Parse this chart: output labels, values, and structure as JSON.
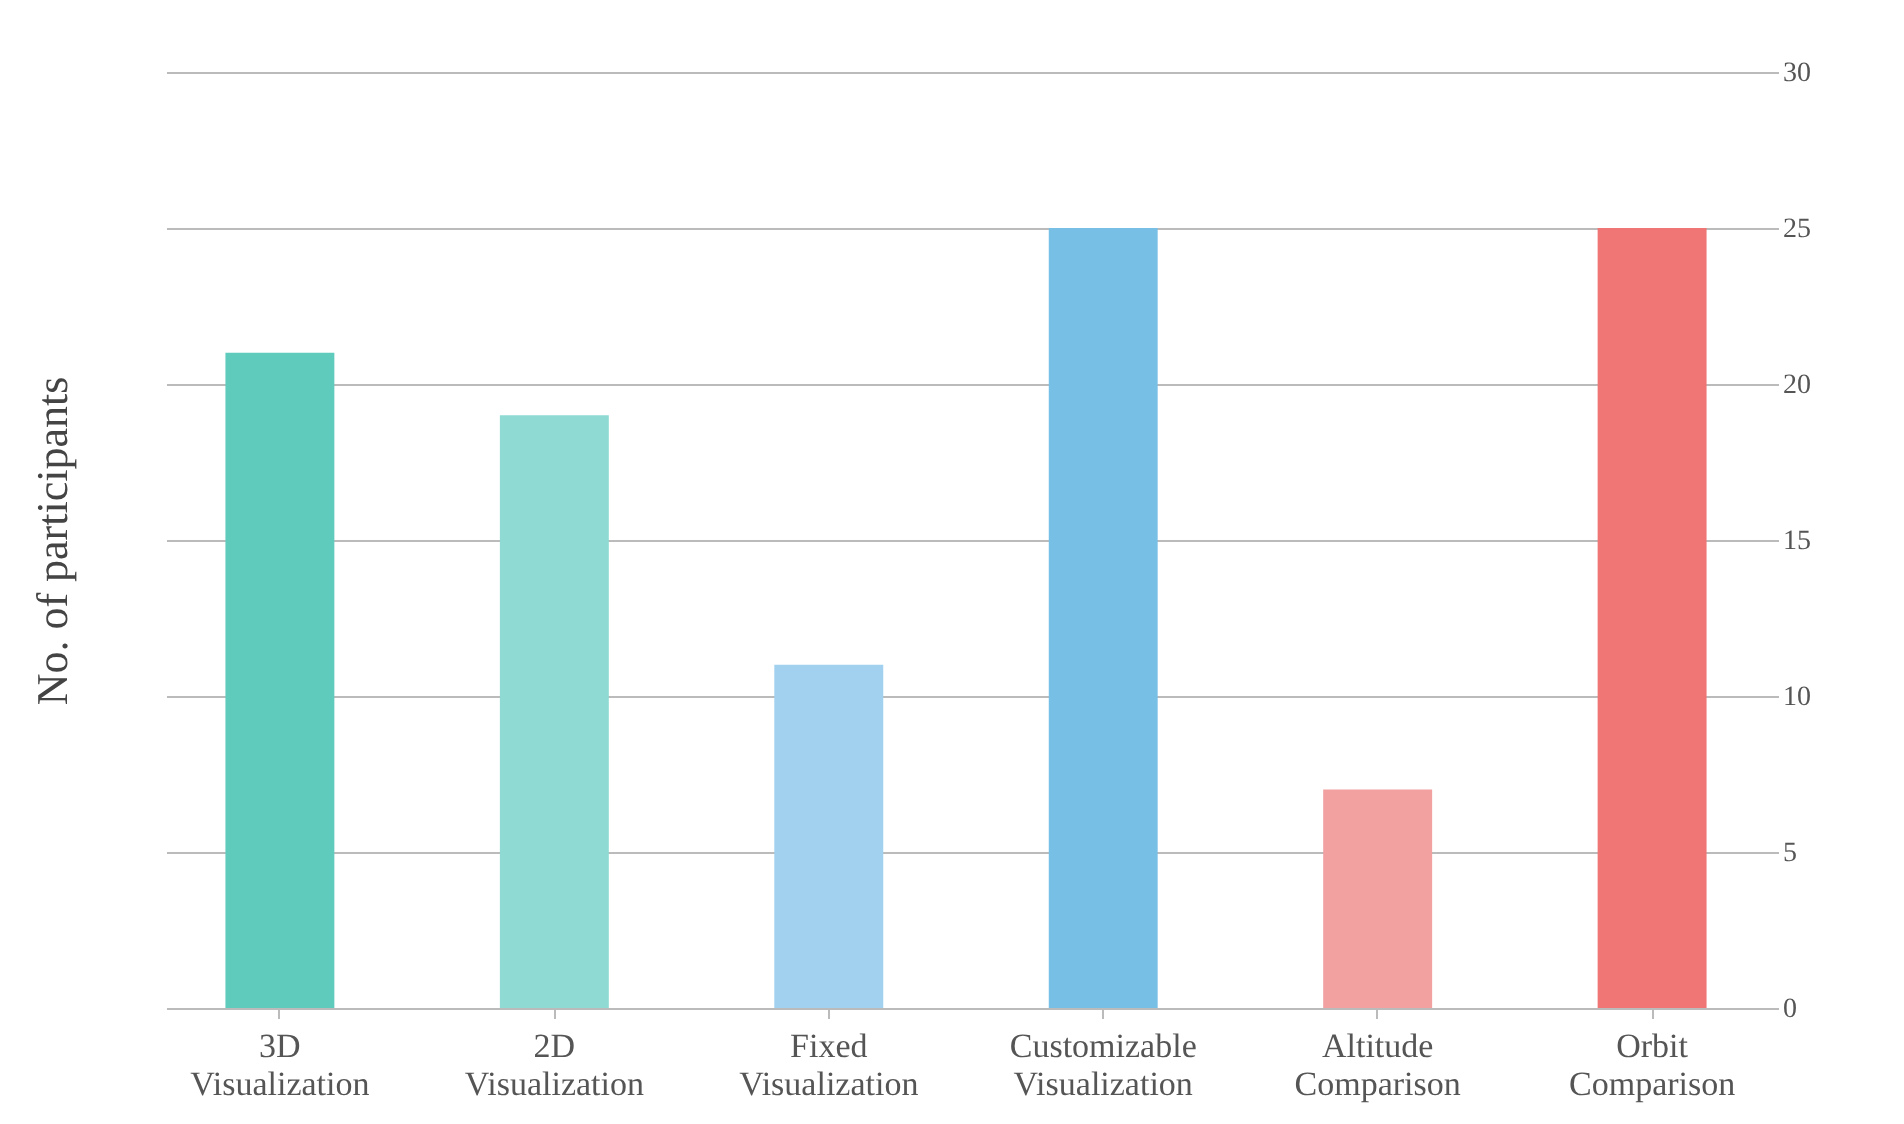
{
  "chart_data": {
    "type": "bar",
    "ylabel": "No. of participants",
    "categories": [
      "3D Visualization",
      "2D Visualization",
      "Fixed Visualization",
      "Customizable Visualization",
      "Altitude Comparison",
      "Orbit Comparison"
    ],
    "values": [
      21,
      19,
      11,
      25,
      7,
      25
    ],
    "colors": [
      "#5ecbbd",
      "#8fdbd3",
      "#a1d1ee",
      "#78bfe6",
      "#f2a0a0",
      "#ef7675"
    ],
    "ylim": [
      0,
      30
    ],
    "yticks": [
      0,
      5,
      10,
      15,
      20,
      25,
      30
    ],
    "grid": "y"
  }
}
